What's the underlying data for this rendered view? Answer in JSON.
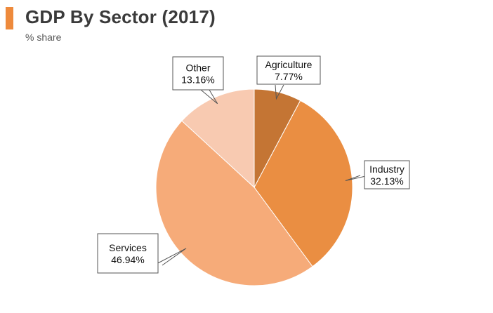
{
  "header": {
    "title": "GDP By Sector (2017)",
    "subtitle": "% share",
    "accent_color": "#ee8a3c"
  },
  "chart_data": {
    "type": "pie",
    "title": "GDP By Sector (2017)",
    "subtitle": "% share",
    "start_angle_deg": 0,
    "direction": "clockwise",
    "slices": [
      {
        "label": "Agriculture",
        "value": 7.77,
        "display": "7.77%",
        "color": "#c47534"
      },
      {
        "label": "Industry",
        "value": 32.13,
        "display": "32.13%",
        "color": "#ea8e42"
      },
      {
        "label": "Services",
        "value": 46.94,
        "display": "46.94%",
        "color": "#f6ab79"
      },
      {
        "label": "Other",
        "value": 13.16,
        "display": "13.16%",
        "color": "#f8cab1"
      }
    ]
  }
}
